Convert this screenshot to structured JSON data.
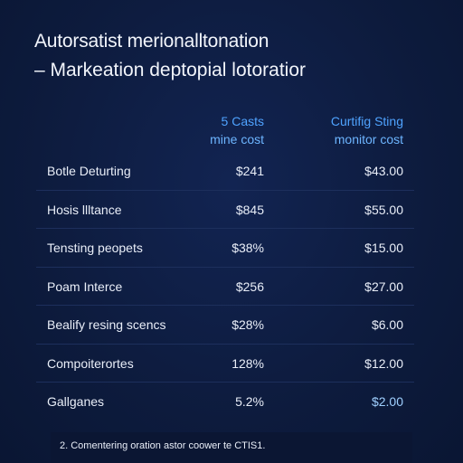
{
  "header": {
    "title": "Autorsatist merionalltonation",
    "subtitle": "– Markeation deptopial lotoratior"
  },
  "table": {
    "columns": [
      {
        "line1": "5 Casts",
        "line2": "mine cost"
      },
      {
        "line1": "Curtifig Sting",
        "line2": "monitor cost"
      }
    ],
    "rows": [
      {
        "name": "Botle Deturting",
        "v1": "$241",
        "v2": "$43.00",
        "v2_accent": false
      },
      {
        "name": "Hosis llltance",
        "v1": "$845",
        "v2": "$55.00",
        "v2_accent": false
      },
      {
        "name": "Tensting peopets",
        "v1": "$38%",
        "v2": "$15.00",
        "v2_accent": false
      },
      {
        "name": "Poam Interce",
        "v1": "$256",
        "v2": "$27.00",
        "v2_accent": false
      },
      {
        "name": "Bealify resing scencs",
        "v1": "$28%",
        "v2": "$6.00",
        "v2_accent": false
      },
      {
        "name": "Compoiterortes",
        "v1": "128%",
        "v2": "$12.00",
        "v2_accent": false
      },
      {
        "name": "Gallganes",
        "v1": "5.2%",
        "v2": "$2.00",
        "v2_accent": true
      }
    ]
  },
  "footnote": "2. Comentering oration astor coower te CTIS1.",
  "colors": {
    "background": "#0d1b3d",
    "accent": "#4fa3ff",
    "text": "#e9eef8"
  }
}
